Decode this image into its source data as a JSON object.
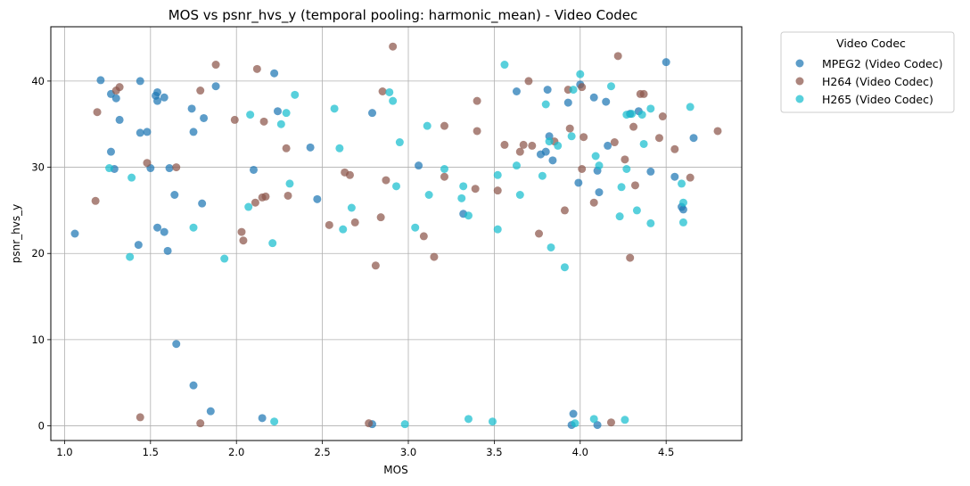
{
  "chart_data": {
    "type": "scatter",
    "title": "MOS vs psnr_hvs_y (temporal pooling: harmonic_mean) - Video Codec",
    "xlabel": "MOS",
    "ylabel": "psnr_hvs_y",
    "xlim": [
      0.92,
      4.94
    ],
    "ylim": [
      -1.7,
      46.3
    ],
    "x_ticks": [
      1.0,
      1.5,
      2.0,
      2.5,
      3.0,
      3.5,
      4.0,
      4.5
    ],
    "x_tick_labels": [
      "1.0",
      "1.5",
      "2.0",
      "2.5",
      "3.0",
      "3.5",
      "4.0",
      "4.5"
    ],
    "y_ticks": [
      0,
      10,
      20,
      30,
      40
    ],
    "y_tick_labels": [
      "0",
      "10",
      "20",
      "30",
      "40"
    ],
    "grid": true,
    "legend": {
      "title": "Video Codec",
      "placement": "outside-top-right"
    },
    "series": [
      {
        "name": "MPEG2 (Video Codec)",
        "color": "#1f77b4",
        "points": [
          [
            1.06,
            22.3
          ],
          [
            1.21,
            40.1
          ],
          [
            1.27,
            38.5
          ],
          [
            1.27,
            31.8
          ],
          [
            1.29,
            29.8
          ],
          [
            1.3,
            38.0
          ],
          [
            1.32,
            35.5
          ],
          [
            1.43,
            21.0
          ],
          [
            1.44,
            40.0
          ],
          [
            1.44,
            34.0
          ],
          [
            1.48,
            34.1
          ],
          [
            1.5,
            29.9
          ],
          [
            1.53,
            38.3
          ],
          [
            1.54,
            38.7
          ],
          [
            1.54,
            37.7
          ],
          [
            1.54,
            23.0
          ],
          [
            1.58,
            38.1
          ],
          [
            1.58,
            22.5
          ],
          [
            1.6,
            20.3
          ],
          [
            1.61,
            29.9
          ],
          [
            1.64,
            26.8
          ],
          [
            1.65,
            9.5
          ],
          [
            1.74,
            36.8
          ],
          [
            1.75,
            34.1
          ],
          [
            1.75,
            4.7
          ],
          [
            1.8,
            25.8
          ],
          [
            1.81,
            35.7
          ],
          [
            1.85,
            1.7
          ],
          [
            1.88,
            39.4
          ],
          [
            2.1,
            29.7
          ],
          [
            2.15,
            0.9
          ],
          [
            2.22,
            40.9
          ],
          [
            2.24,
            36.5
          ],
          [
            2.43,
            32.3
          ],
          [
            2.47,
            26.3
          ],
          [
            2.79,
            0.2
          ],
          [
            2.79,
            36.3
          ],
          [
            3.06,
            30.2
          ],
          [
            3.32,
            24.6
          ],
          [
            3.63,
            38.8
          ],
          [
            3.77,
            31.5
          ],
          [
            3.8,
            31.8
          ],
          [
            3.81,
            39.0
          ],
          [
            3.82,
            33.6
          ],
          [
            3.84,
            30.8
          ],
          [
            3.93,
            37.5
          ],
          [
            3.95,
            0.1
          ],
          [
            3.96,
            1.4
          ],
          [
            3.99,
            28.2
          ],
          [
            4.0,
            39.6
          ],
          [
            4.08,
            38.1
          ],
          [
            4.1,
            29.6
          ],
          [
            4.1,
            0.1
          ],
          [
            4.11,
            27.1
          ],
          [
            4.15,
            37.6
          ],
          [
            4.16,
            32.5
          ],
          [
            4.29,
            36.2
          ],
          [
            4.34,
            36.5
          ],
          [
            4.41,
            29.5
          ],
          [
            4.5,
            42.2
          ],
          [
            4.55,
            28.9
          ],
          [
            4.59,
            25.4
          ],
          [
            4.6,
            25.1
          ],
          [
            4.66,
            33.4
          ]
        ]
      },
      {
        "name": "H264 (Video Codec)",
        "color": "#8c564b",
        "points": [
          [
            1.18,
            26.1
          ],
          [
            1.19,
            36.4
          ],
          [
            1.3,
            38.9
          ],
          [
            1.32,
            39.3
          ],
          [
            1.44,
            1.0
          ],
          [
            1.48,
            30.5
          ],
          [
            1.65,
            30.0
          ],
          [
            1.79,
            38.9
          ],
          [
            1.79,
            0.3
          ],
          [
            1.88,
            41.9
          ],
          [
            1.99,
            35.5
          ],
          [
            2.03,
            22.5
          ],
          [
            2.04,
            21.5
          ],
          [
            2.11,
            25.9
          ],
          [
            2.12,
            41.4
          ],
          [
            2.15,
            26.5
          ],
          [
            2.16,
            35.3
          ],
          [
            2.17,
            26.6
          ],
          [
            2.29,
            32.2
          ],
          [
            2.3,
            26.7
          ],
          [
            2.54,
            23.3
          ],
          [
            2.63,
            29.4
          ],
          [
            2.66,
            29.1
          ],
          [
            2.69,
            23.6
          ],
          [
            2.77,
            0.3
          ],
          [
            2.81,
            18.6
          ],
          [
            2.84,
            24.2
          ],
          [
            2.85,
            38.8
          ],
          [
            2.87,
            28.5
          ],
          [
            2.91,
            44.0
          ],
          [
            3.09,
            22.0
          ],
          [
            3.15,
            19.6
          ],
          [
            3.21,
            34.8
          ],
          [
            3.21,
            28.9
          ],
          [
            3.39,
            27.5
          ],
          [
            3.4,
            37.7
          ],
          [
            3.4,
            34.2
          ],
          [
            3.52,
            27.3
          ],
          [
            3.56,
            32.6
          ],
          [
            3.65,
            31.8
          ],
          [
            3.67,
            32.6
          ],
          [
            3.7,
            40.0
          ],
          [
            3.72,
            32.5
          ],
          [
            3.76,
            22.3
          ],
          [
            3.85,
            33.0
          ],
          [
            3.91,
            25.0
          ],
          [
            3.93,
            39.0
          ],
          [
            3.94,
            34.5
          ],
          [
            4.01,
            29.8
          ],
          [
            4.01,
            39.3
          ],
          [
            4.02,
            33.5
          ],
          [
            4.08,
            25.9
          ],
          [
            4.18,
            0.4
          ],
          [
            4.2,
            32.9
          ],
          [
            4.22,
            42.9
          ],
          [
            4.26,
            30.9
          ],
          [
            4.29,
            19.5
          ],
          [
            4.31,
            34.7
          ],
          [
            4.32,
            27.9
          ],
          [
            4.35,
            38.5
          ],
          [
            4.37,
            38.5
          ],
          [
            4.46,
            33.4
          ],
          [
            4.48,
            35.9
          ],
          [
            4.55,
            32.1
          ],
          [
            4.64,
            28.8
          ],
          [
            4.8,
            34.2
          ]
        ]
      },
      {
        "name": "H265 (Video Codec)",
        "color": "#17becf",
        "points": [
          [
            1.26,
            29.9
          ],
          [
            1.38,
            19.6
          ],
          [
            1.39,
            28.8
          ],
          [
            1.75,
            23.0
          ],
          [
            1.93,
            19.4
          ],
          [
            2.07,
            25.4
          ],
          [
            2.08,
            36.1
          ],
          [
            2.21,
            21.2
          ],
          [
            2.22,
            0.5
          ],
          [
            2.26,
            35.0
          ],
          [
            2.29,
            36.3
          ],
          [
            2.31,
            28.1
          ],
          [
            2.34,
            38.4
          ],
          [
            2.57,
            36.8
          ],
          [
            2.6,
            32.2
          ],
          [
            2.62,
            22.8
          ],
          [
            2.67,
            25.3
          ],
          [
            2.89,
            38.7
          ],
          [
            2.91,
            37.7
          ],
          [
            2.93,
            27.8
          ],
          [
            2.95,
            32.9
          ],
          [
            2.98,
            0.2
          ],
          [
            3.04,
            23.0
          ],
          [
            3.11,
            34.8
          ],
          [
            3.12,
            26.8
          ],
          [
            3.21,
            29.8
          ],
          [
            3.31,
            26.4
          ],
          [
            3.32,
            27.8
          ],
          [
            3.35,
            24.4
          ],
          [
            3.35,
            0.8
          ],
          [
            3.49,
            0.5
          ],
          [
            3.52,
            22.8
          ],
          [
            3.52,
            29.1
          ],
          [
            3.56,
            41.9
          ],
          [
            3.63,
            30.2
          ],
          [
            3.65,
            26.8
          ],
          [
            3.78,
            29.0
          ],
          [
            3.8,
            37.3
          ],
          [
            3.82,
            33.0
          ],
          [
            3.83,
            20.7
          ],
          [
            3.87,
            32.5
          ],
          [
            3.91,
            18.4
          ],
          [
            3.95,
            33.6
          ],
          [
            3.96,
            39.0
          ],
          [
            3.97,
            0.3
          ],
          [
            4.0,
            40.8
          ],
          [
            4.08,
            0.8
          ],
          [
            4.09,
            31.3
          ],
          [
            4.11,
            30.2
          ],
          [
            4.18,
            39.4
          ],
          [
            4.23,
            24.3
          ],
          [
            4.24,
            27.7
          ],
          [
            4.26,
            0.7
          ],
          [
            4.27,
            29.8
          ],
          [
            4.27,
            36.1
          ],
          [
            4.3,
            36.2
          ],
          [
            4.33,
            25.0
          ],
          [
            4.36,
            36.1
          ],
          [
            4.37,
            32.7
          ],
          [
            4.41,
            23.5
          ],
          [
            4.41,
            36.8
          ],
          [
            4.59,
            28.1
          ],
          [
            4.6,
            23.6
          ],
          [
            4.6,
            25.9
          ],
          [
            4.64,
            37.0
          ]
        ]
      }
    ]
  }
}
